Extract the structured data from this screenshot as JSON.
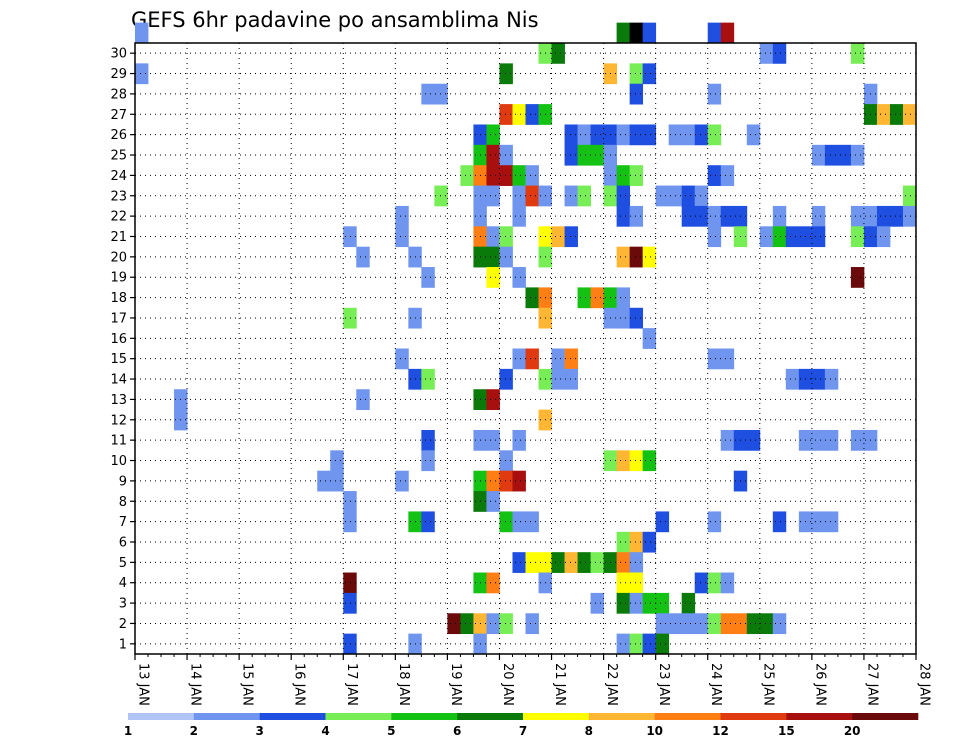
{
  "chart_data": {
    "type": "heatmap",
    "title": "GEFS 6hr padavine po ansamblima Nis",
    "xlabel": "",
    "ylabel": "",
    "x_tick_labels": [
      "13 JAN",
      "14 JAN",
      "15 JAN",
      "16 JAN",
      "17 JAN",
      "18 JAN",
      "19 JAN",
      "20 JAN",
      "21 JAN",
      "22 JAN",
      "23 JAN",
      "24 JAN",
      "25 JAN",
      "26 JAN",
      "27 JAN",
      "28 JAN"
    ],
    "xlim": [
      0,
      60
    ],
    "y_tick_labels": [
      "1",
      "2",
      "3",
      "4",
      "5",
      "6",
      "7",
      "8",
      "9",
      "10",
      "11",
      "12",
      "13",
      "14",
      "15",
      "16",
      "17",
      "18",
      "19",
      "20",
      "21",
      "22",
      "23",
      "24",
      "25",
      "26",
      "27",
      "28",
      "29",
      "30"
    ],
    "ylim": [
      0,
      30
    ],
    "grid": true,
    "colorbar": {
      "levels": [
        "1",
        "2",
        "3",
        "4",
        "5",
        "6",
        "7",
        "8",
        "10",
        "12",
        "15",
        "20"
      ],
      "colors": [
        "#b0c4f5",
        "#6f95ef",
        "#1f4fe0",
        "#77ee55",
        "#14c214",
        "#0a7a0a",
        "#ffff00",
        "#ffb733",
        "#ff7f15",
        "#e03a10",
        "#a81010",
        "#6a0a0a"
      ]
    },
    "cells": [
      [
        30,
        0,
        1
      ],
      [
        30,
        37,
        5
      ],
      [
        30,
        38,
        12
      ],
      [
        30,
        39,
        2
      ],
      [
        30,
        44,
        2
      ],
      [
        30,
        45,
        10
      ],
      [
        29,
        31,
        3
      ],
      [
        29,
        32,
        5
      ],
      [
        29,
        48,
        1
      ],
      [
        29,
        49,
        2
      ],
      [
        29,
        55,
        3
      ],
      [
        28,
        0,
        1
      ],
      [
        28,
        28,
        5
      ],
      [
        28,
        36,
        7
      ],
      [
        28,
        38,
        3
      ],
      [
        28,
        39,
        2
      ],
      [
        27,
        22,
        1
      ],
      [
        27,
        23,
        1
      ],
      [
        27,
        38,
        2
      ],
      [
        27,
        44,
        1
      ],
      [
        27,
        56,
        1
      ],
      [
        26,
        28,
        9
      ],
      [
        26,
        29,
        6
      ],
      [
        26,
        30,
        2
      ],
      [
        26,
        31,
        4
      ],
      [
        26,
        56,
        5
      ],
      [
        26,
        57,
        7
      ],
      [
        26,
        58,
        5
      ],
      [
        26,
        59,
        7
      ],
      [
        25,
        26,
        2
      ],
      [
        25,
        27,
        4
      ],
      [
        25,
        33,
        2
      ],
      [
        25,
        34,
        1
      ],
      [
        25,
        35,
        2
      ],
      [
        25,
        36,
        2
      ],
      [
        25,
        37,
        1
      ],
      [
        25,
        38,
        2
      ],
      [
        25,
        39,
        2
      ],
      [
        25,
        41,
        1
      ],
      [
        25,
        42,
        1
      ],
      [
        25,
        43,
        2
      ],
      [
        25,
        44,
        3
      ],
      [
        25,
        47,
        1
      ],
      [
        24,
        26,
        4
      ],
      [
        24,
        27,
        10
      ],
      [
        24,
        28,
        1
      ],
      [
        24,
        33,
        2
      ],
      [
        24,
        34,
        4
      ],
      [
        24,
        35,
        4
      ],
      [
        24,
        36,
        1
      ],
      [
        24,
        52,
        1
      ],
      [
        24,
        53,
        2
      ],
      [
        24,
        54,
        2
      ],
      [
        24,
        55,
        1
      ],
      [
        23,
        25,
        3
      ],
      [
        23,
        26,
        8
      ],
      [
        23,
        27,
        10
      ],
      [
        23,
        28,
        10
      ],
      [
        23,
        29,
        4
      ],
      [
        23,
        30,
        1
      ],
      [
        23,
        36,
        1
      ],
      [
        23,
        37,
        4
      ],
      [
        23,
        38,
        3
      ],
      [
        23,
        44,
        2
      ],
      [
        23,
        45,
        1
      ],
      [
        22,
        23,
        3
      ],
      [
        22,
        26,
        1
      ],
      [
        22,
        27,
        1
      ],
      [
        22,
        29,
        1
      ],
      [
        22,
        30,
        9
      ],
      [
        22,
        31,
        1
      ],
      [
        22,
        33,
        1
      ],
      [
        22,
        34,
        3
      ],
      [
        22,
        36,
        3
      ],
      [
        22,
        37,
        2
      ],
      [
        22,
        40,
        1
      ],
      [
        22,
        41,
        1
      ],
      [
        22,
        42,
        2
      ],
      [
        22,
        43,
        1
      ],
      [
        22,
        59,
        3
      ],
      [
        21,
        20,
        1
      ],
      [
        21,
        26,
        1
      ],
      [
        21,
        29,
        1
      ],
      [
        21,
        37,
        2
      ],
      [
        21,
        38,
        1
      ],
      [
        21,
        42,
        2
      ],
      [
        21,
        43,
        2
      ],
      [
        21,
        44,
        1
      ],
      [
        21,
        45,
        2
      ],
      [
        21,
        46,
        2
      ],
      [
        21,
        49,
        1
      ],
      [
        21,
        52,
        1
      ],
      [
        21,
        55,
        1
      ],
      [
        21,
        56,
        1
      ],
      [
        21,
        57,
        2
      ],
      [
        21,
        58,
        2
      ],
      [
        21,
        59,
        1
      ],
      [
        20,
        16,
        1
      ],
      [
        20,
        20,
        1
      ],
      [
        20,
        26,
        8
      ],
      [
        20,
        27,
        1
      ],
      [
        20,
        28,
        3
      ],
      [
        20,
        31,
        6
      ],
      [
        20,
        32,
        7
      ],
      [
        20,
        33,
        2
      ],
      [
        20,
        44,
        1
      ],
      [
        20,
        46,
        3
      ],
      [
        20,
        48,
        1
      ],
      [
        20,
        49,
        4
      ],
      [
        20,
        50,
        2
      ],
      [
        20,
        51,
        2
      ],
      [
        20,
        52,
        2
      ],
      [
        20,
        55,
        3
      ],
      [
        20,
        56,
        2
      ],
      [
        20,
        57,
        1
      ],
      [
        19,
        17,
        1
      ],
      [
        19,
        21,
        1
      ],
      [
        19,
        26,
        5
      ],
      [
        19,
        27,
        5
      ],
      [
        19,
        28,
        1
      ],
      [
        19,
        31,
        3
      ],
      [
        19,
        37,
        7
      ],
      [
        19,
        38,
        11
      ],
      [
        19,
        39,
        6
      ],
      [
        18,
        22,
        1
      ],
      [
        18,
        27,
        6
      ],
      [
        18,
        29,
        1
      ],
      [
        18,
        55,
        11
      ],
      [
        17,
        30,
        5
      ],
      [
        17,
        31,
        8
      ],
      [
        17,
        34,
        4
      ],
      [
        17,
        35,
        8
      ],
      [
        17,
        36,
        4
      ],
      [
        17,
        37,
        1
      ],
      [
        16,
        16,
        3
      ],
      [
        16,
        21,
        1
      ],
      [
        16,
        31,
        7
      ],
      [
        16,
        36,
        1
      ],
      [
        16,
        37,
        1
      ],
      [
        16,
        38,
        2
      ],
      [
        15,
        39,
        1
      ],
      [
        14,
        20,
        1
      ],
      [
        14,
        29,
        1
      ],
      [
        14,
        30,
        9
      ],
      [
        14,
        32,
        1
      ],
      [
        14,
        33,
        8
      ],
      [
        14,
        44,
        1
      ],
      [
        14,
        45,
        1
      ],
      [
        13,
        21,
        2
      ],
      [
        13,
        22,
        3
      ],
      [
        13,
        28,
        2
      ],
      [
        13,
        31,
        3
      ],
      [
        13,
        32,
        1
      ],
      [
        13,
        33,
        1
      ],
      [
        13,
        50,
        1
      ],
      [
        13,
        51,
        2
      ],
      [
        13,
        52,
        2
      ],
      [
        13,
        53,
        1
      ],
      [
        12,
        3,
        1
      ],
      [
        12,
        17,
        1
      ],
      [
        12,
        26,
        5
      ],
      [
        12,
        27,
        10
      ],
      [
        11,
        3,
        1
      ],
      [
        11,
        31,
        7
      ],
      [
        10,
        22,
        2
      ],
      [
        10,
        26,
        1
      ],
      [
        10,
        27,
        1
      ],
      [
        10,
        29,
        1
      ],
      [
        10,
        45,
        1
      ],
      [
        10,
        46,
        2
      ],
      [
        10,
        47,
        2
      ],
      [
        10,
        51,
        1
      ],
      [
        10,
        52,
        1
      ],
      [
        10,
        53,
        1
      ],
      [
        10,
        55,
        1
      ],
      [
        10,
        56,
        1
      ],
      [
        9,
        15,
        1
      ],
      [
        9,
        22,
        1
      ],
      [
        9,
        28,
        1
      ],
      [
        9,
        36,
        3
      ],
      [
        9,
        37,
        7
      ],
      [
        9,
        38,
        6
      ],
      [
        9,
        39,
        4
      ],
      [
        8,
        14,
        1
      ],
      [
        8,
        15,
        1
      ],
      [
        8,
        20,
        1
      ],
      [
        8,
        26,
        4
      ],
      [
        8,
        27,
        8
      ],
      [
        8,
        28,
        9
      ],
      [
        8,
        29,
        10
      ],
      [
        8,
        46,
        2
      ],
      [
        7,
        16,
        1
      ],
      [
        7,
        26,
        5
      ],
      [
        7,
        27,
        1
      ],
      [
        6,
        16,
        1
      ],
      [
        6,
        21,
        4
      ],
      [
        6,
        22,
        2
      ],
      [
        6,
        28,
        4
      ],
      [
        6,
        29,
        1
      ],
      [
        6,
        30,
        1
      ],
      [
        6,
        40,
        2
      ],
      [
        6,
        44,
        1
      ],
      [
        6,
        49,
        2
      ],
      [
        6,
        51,
        1
      ],
      [
        6,
        52,
        1
      ],
      [
        6,
        53,
        1
      ],
      [
        5,
        37,
        3
      ],
      [
        5,
        38,
        7
      ],
      [
        5,
        39,
        2
      ],
      [
        4,
        29,
        2
      ],
      [
        4,
        30,
        6
      ],
      [
        4,
        31,
        6
      ],
      [
        4,
        32,
        5
      ],
      [
        4,
        33,
        7
      ],
      [
        4,
        34,
        5
      ],
      [
        4,
        35,
        3
      ],
      [
        4,
        36,
        5
      ],
      [
        4,
        37,
        8
      ],
      [
        4,
        38,
        1
      ],
      [
        3,
        16,
        11
      ],
      [
        3,
        26,
        4
      ],
      [
        3,
        27,
        8
      ],
      [
        3,
        31,
        1
      ],
      [
        3,
        37,
        6
      ],
      [
        3,
        38,
        6
      ],
      [
        3,
        43,
        2
      ],
      [
        3,
        44,
        3
      ],
      [
        3,
        45,
        1
      ],
      [
        2,
        16,
        2
      ],
      [
        2,
        35,
        1
      ],
      [
        2,
        37,
        5
      ],
      [
        2,
        38,
        1
      ],
      [
        2,
        39,
        4
      ],
      [
        2,
        40,
        4
      ],
      [
        2,
        42,
        5
      ],
      [
        1,
        24,
        11
      ],
      [
        1,
        25,
        5
      ],
      [
        1,
        26,
        7
      ],
      [
        1,
        27,
        1
      ],
      [
        1,
        28,
        3
      ],
      [
        1,
        30,
        1
      ],
      [
        1,
        40,
        1
      ],
      [
        1,
        41,
        1
      ],
      [
        1,
        42,
        1
      ],
      [
        1,
        43,
        1
      ],
      [
        1,
        44,
        3
      ],
      [
        1,
        45,
        8
      ],
      [
        1,
        46,
        8
      ],
      [
        1,
        47,
        5
      ],
      [
        1,
        48,
        5
      ],
      [
        1,
        49,
        1
      ],
      [
        0,
        16,
        2
      ],
      [
        0,
        21,
        1
      ],
      [
        0,
        26,
        1
      ],
      [
        0,
        37,
        1
      ],
      [
        0,
        38,
        3
      ],
      [
        0,
        39,
        2
      ],
      [
        0,
        40,
        5
      ]
    ]
  }
}
